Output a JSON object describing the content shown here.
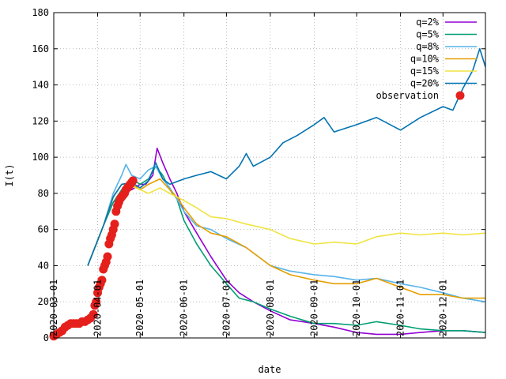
{
  "chart_data": {
    "type": "line",
    "title": "",
    "xlabel": "date",
    "ylabel": "I(t)",
    "ylim": [
      0,
      180
    ],
    "yticks": [
      0,
      20,
      40,
      60,
      80,
      100,
      120,
      140,
      160,
      180
    ],
    "xlim": [
      "2020-03-01",
      "2020-12-31"
    ],
    "xticks": [
      "2020-03-01",
      "2020-04-01",
      "2020-05-01",
      "2020-06-01",
      "2020-07-01",
      "2020-08-01",
      "2020-09-01",
      "2020-10-01",
      "2020-11-01",
      "2020-12-01"
    ],
    "grid": true,
    "legend_position": "top-right",
    "series": [
      {
        "name": "q=2%",
        "color": "#9400d3",
        "points": [
          [
            "2020-03-25",
            40
          ],
          [
            "2020-04-05",
            62
          ],
          [
            "2020-04-12",
            75
          ],
          [
            "2020-04-18",
            80
          ],
          [
            "2020-04-25",
            82
          ],
          [
            "2020-05-01",
            85
          ],
          [
            "2020-05-05",
            85
          ],
          [
            "2020-05-10",
            90
          ],
          [
            "2020-05-13",
            105
          ],
          [
            "2020-05-17",
            97
          ],
          [
            "2020-05-22",
            88
          ],
          [
            "2020-05-27",
            80
          ],
          [
            "2020-06-01",
            70
          ],
          [
            "2020-06-10",
            58
          ],
          [
            "2020-06-20",
            45
          ],
          [
            "2020-07-01",
            32
          ],
          [
            "2020-07-10",
            25
          ],
          [
            "2020-07-20",
            20
          ],
          [
            "2020-08-01",
            15
          ],
          [
            "2020-08-15",
            10
          ],
          [
            "2020-09-01",
            8
          ],
          [
            "2020-09-15",
            6
          ],
          [
            "2020-10-01",
            3
          ],
          [
            "2020-10-15",
            2
          ],
          [
            "2020-11-01",
            2
          ],
          [
            "2020-11-15",
            3
          ],
          [
            "2020-12-01",
            4
          ],
          [
            "2020-12-15",
            4
          ],
          [
            "2020-12-31",
            3
          ]
        ]
      },
      {
        "name": "q=5%",
        "color": "#009e73",
        "points": [
          [
            "2020-03-25",
            40
          ],
          [
            "2020-04-05",
            62
          ],
          [
            "2020-04-12",
            75
          ],
          [
            "2020-04-18",
            82
          ],
          [
            "2020-04-25",
            88
          ],
          [
            "2020-05-01",
            85
          ],
          [
            "2020-05-07",
            88
          ],
          [
            "2020-05-12",
            95
          ],
          [
            "2020-05-17",
            90
          ],
          [
            "2020-05-22",
            82
          ],
          [
            "2020-05-27",
            77
          ],
          [
            "2020-06-01",
            65
          ],
          [
            "2020-06-10",
            52
          ],
          [
            "2020-06-20",
            40
          ],
          [
            "2020-07-01",
            30
          ],
          [
            "2020-07-10",
            22
          ],
          [
            "2020-07-20",
            20
          ],
          [
            "2020-08-01",
            16
          ],
          [
            "2020-08-15",
            12
          ],
          [
            "2020-09-01",
            8
          ],
          [
            "2020-09-15",
            8
          ],
          [
            "2020-10-01",
            7
          ],
          [
            "2020-10-15",
            9
          ],
          [
            "2020-11-01",
            7
          ],
          [
            "2020-11-15",
            5
          ],
          [
            "2020-12-01",
            4
          ],
          [
            "2020-12-15",
            4
          ],
          [
            "2020-12-31",
            3
          ]
        ]
      },
      {
        "name": "q=8%",
        "color": "#56b4e9",
        "points": [
          [
            "2020-03-25",
            40
          ],
          [
            "2020-04-05",
            62
          ],
          [
            "2020-04-12",
            80
          ],
          [
            "2020-04-18",
            90
          ],
          [
            "2020-04-21",
            96
          ],
          [
            "2020-04-25",
            90
          ],
          [
            "2020-05-01",
            88
          ],
          [
            "2020-05-07",
            93
          ],
          [
            "2020-05-12",
            95
          ],
          [
            "2020-05-17",
            88
          ],
          [
            "2020-05-22",
            83
          ],
          [
            "2020-05-27",
            77
          ],
          [
            "2020-06-01",
            70
          ],
          [
            "2020-06-10",
            62
          ],
          [
            "2020-06-20",
            60
          ],
          [
            "2020-07-01",
            55
          ],
          [
            "2020-07-15",
            50
          ],
          [
            "2020-08-01",
            40
          ],
          [
            "2020-08-15",
            37
          ],
          [
            "2020-09-01",
            35
          ],
          [
            "2020-09-15",
            34
          ],
          [
            "2020-10-01",
            32
          ],
          [
            "2020-10-15",
            33
          ],
          [
            "2020-11-01",
            30
          ],
          [
            "2020-11-15",
            28
          ],
          [
            "2020-12-01",
            25
          ],
          [
            "2020-12-15",
            22
          ],
          [
            "2020-12-31",
            20
          ]
        ]
      },
      {
        "name": "q=10%",
        "color": "#e69f00",
        "points": [
          [
            "2020-03-25",
            40
          ],
          [
            "2020-04-05",
            62
          ],
          [
            "2020-04-12",
            78
          ],
          [
            "2020-04-18",
            85
          ],
          [
            "2020-04-25",
            85
          ],
          [
            "2020-05-01",
            82
          ],
          [
            "2020-05-07",
            85
          ],
          [
            "2020-05-15",
            88
          ],
          [
            "2020-05-22",
            82
          ],
          [
            "2020-05-27",
            78
          ],
          [
            "2020-06-01",
            72
          ],
          [
            "2020-06-10",
            63
          ],
          [
            "2020-06-20",
            58
          ],
          [
            "2020-07-01",
            56
          ],
          [
            "2020-07-15",
            50
          ],
          [
            "2020-08-01",
            40
          ],
          [
            "2020-08-15",
            35
          ],
          [
            "2020-09-01",
            32
          ],
          [
            "2020-09-15",
            30
          ],
          [
            "2020-10-01",
            30
          ],
          [
            "2020-10-15",
            33
          ],
          [
            "2020-11-01",
            28
          ],
          [
            "2020-11-15",
            24
          ],
          [
            "2020-12-01",
            24
          ],
          [
            "2020-12-15",
            22
          ],
          [
            "2020-12-31",
            22
          ]
        ]
      },
      {
        "name": "q=15%",
        "color": "#f0e442",
        "points": [
          [
            "2020-03-25",
            40
          ],
          [
            "2020-04-05",
            62
          ],
          [
            "2020-04-12",
            78
          ],
          [
            "2020-04-18",
            85
          ],
          [
            "2020-04-25",
            84
          ],
          [
            "2020-05-01",
            82
          ],
          [
            "2020-05-07",
            80
          ],
          [
            "2020-05-15",
            83
          ],
          [
            "2020-05-22",
            80
          ],
          [
            "2020-06-01",
            76
          ],
          [
            "2020-06-10",
            72
          ],
          [
            "2020-06-20",
            67
          ],
          [
            "2020-07-01",
            66
          ],
          [
            "2020-07-15",
            63
          ],
          [
            "2020-08-01",
            60
          ],
          [
            "2020-08-15",
            55
          ],
          [
            "2020-09-01",
            52
          ],
          [
            "2020-09-15",
            53
          ],
          [
            "2020-10-01",
            52
          ],
          [
            "2020-10-15",
            56
          ],
          [
            "2020-11-01",
            58
          ],
          [
            "2020-11-15",
            57
          ],
          [
            "2020-12-01",
            58
          ],
          [
            "2020-12-15",
            57
          ],
          [
            "2020-12-31",
            58
          ]
        ]
      },
      {
        "name": "q=20%",
        "color": "#0072b2",
        "points": [
          [
            "2020-03-25",
            40
          ],
          [
            "2020-04-05",
            62
          ],
          [
            "2020-04-12",
            78
          ],
          [
            "2020-04-18",
            85
          ],
          [
            "2020-04-25",
            86
          ],
          [
            "2020-05-01",
            83
          ],
          [
            "2020-05-07",
            87
          ],
          [
            "2020-05-12",
            97
          ],
          [
            "2020-05-17",
            88
          ],
          [
            "2020-05-22",
            85
          ],
          [
            "2020-06-01",
            88
          ],
          [
            "2020-06-10",
            90
          ],
          [
            "2020-06-20",
            92
          ],
          [
            "2020-07-01",
            88
          ],
          [
            "2020-07-10",
            95
          ],
          [
            "2020-07-15",
            102
          ],
          [
            "2020-07-20",
            95
          ],
          [
            "2020-08-01",
            100
          ],
          [
            "2020-08-10",
            108
          ],
          [
            "2020-08-20",
            112
          ],
          [
            "2020-09-01",
            118
          ],
          [
            "2020-09-08",
            122
          ],
          [
            "2020-09-15",
            114
          ],
          [
            "2020-10-01",
            118
          ],
          [
            "2020-10-15",
            122
          ],
          [
            "2020-11-01",
            115
          ],
          [
            "2020-11-15",
            122
          ],
          [
            "2020-12-01",
            128
          ],
          [
            "2020-12-08",
            126
          ],
          [
            "2020-12-15",
            138
          ],
          [
            "2020-12-22",
            148
          ],
          [
            "2020-12-27",
            160
          ],
          [
            "2020-12-31",
            150
          ]
        ]
      },
      {
        "name": "observation",
        "color": "#e5201c",
        "style": "points",
        "points": [
          [
            "2020-03-01",
            1
          ],
          [
            "2020-03-03",
            2
          ],
          [
            "2020-03-05",
            3
          ],
          [
            "2020-03-07",
            4
          ],
          [
            "2020-03-09",
            6
          ],
          [
            "2020-03-11",
            7
          ],
          [
            "2020-03-13",
            8
          ],
          [
            "2020-03-15",
            8
          ],
          [
            "2020-03-17",
            8
          ],
          [
            "2020-03-19",
            8
          ],
          [
            "2020-03-21",
            9
          ],
          [
            "2020-03-23",
            9
          ],
          [
            "2020-03-25",
            10
          ],
          [
            "2020-03-27",
            11
          ],
          [
            "2020-03-29",
            13
          ],
          [
            "2020-03-30",
            18
          ],
          [
            "2020-03-31",
            20
          ],
          [
            "2020-04-01",
            25
          ],
          [
            "2020-04-02",
            28
          ],
          [
            "2020-04-03",
            30
          ],
          [
            "2020-04-04",
            32
          ],
          [
            "2020-04-05",
            38
          ],
          [
            "2020-04-06",
            40
          ],
          [
            "2020-04-07",
            42
          ],
          [
            "2020-04-08",
            45
          ],
          [
            "2020-04-09",
            52
          ],
          [
            "2020-04-10",
            55
          ],
          [
            "2020-04-11",
            57
          ],
          [
            "2020-04-12",
            60
          ],
          [
            "2020-04-13",
            63
          ],
          [
            "2020-04-14",
            70
          ],
          [
            "2020-04-15",
            73
          ],
          [
            "2020-04-16",
            75
          ],
          [
            "2020-04-17",
            77
          ],
          [
            "2020-04-18",
            78
          ],
          [
            "2020-04-19",
            79
          ],
          [
            "2020-04-20",
            80
          ],
          [
            "2020-04-21",
            82
          ],
          [
            "2020-04-22",
            83
          ],
          [
            "2020-04-23",
            84
          ],
          [
            "2020-04-24",
            85
          ],
          [
            "2020-04-25",
            86
          ],
          [
            "2020-04-26",
            87
          ]
        ]
      }
    ]
  }
}
